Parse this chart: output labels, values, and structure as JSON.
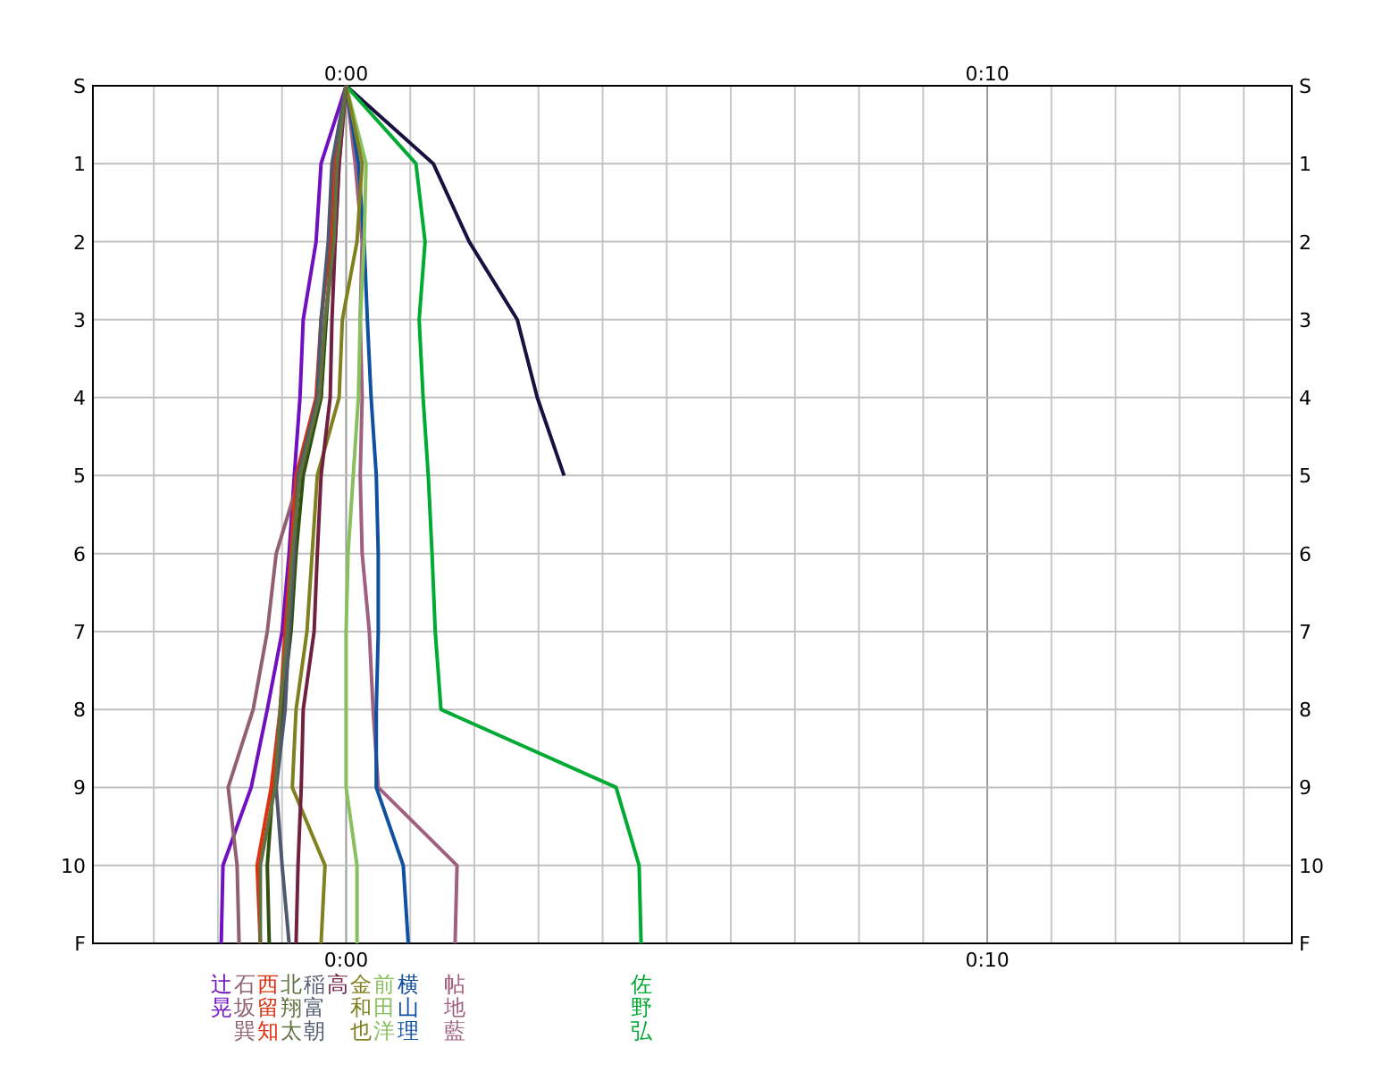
{
  "chart_data": {
    "type": "line",
    "orientation": "horizontal",
    "categories": [
      "S",
      "1",
      "2",
      "3",
      "4",
      "5",
      "6",
      "7",
      "8",
      "9",
      "10",
      "F"
    ],
    "xlim": [
      -3.95,
      14.75
    ],
    "xticks": [
      {
        "value": -3,
        "label": null
      },
      {
        "value": -2,
        "label": null
      },
      {
        "value": -1,
        "label": null
      },
      {
        "value": 0,
        "label": "0:00"
      },
      {
        "value": 1,
        "label": null
      },
      {
        "value": 2,
        "label": null
      },
      {
        "value": 3,
        "label": null
      },
      {
        "value": 4,
        "label": null
      },
      {
        "value": 5,
        "label": null
      },
      {
        "value": 6,
        "label": null
      },
      {
        "value": 7,
        "label": null
      },
      {
        "value": 8,
        "label": null
      },
      {
        "value": 9,
        "label": null
      },
      {
        "value": 10,
        "label": "0:10"
      },
      {
        "value": 11,
        "label": null
      },
      {
        "value": 12,
        "label": null
      },
      {
        "value": 13,
        "label": null
      },
      {
        "value": 14,
        "label": null
      }
    ],
    "x2lim": [
      -3.95,
      14.75
    ],
    "x2ticks": [
      {
        "value": 0,
        "label": "0:00"
      },
      {
        "value": 10,
        "label": "0:10"
      }
    ],
    "grid": true,
    "legend": false,
    "line_style": "solid",
    "series": [
      {
        "color": "#1a1040",
        "values": [
          0,
          1.36,
          1.92,
          2.67,
          2.98,
          3.4,
          null,
          null,
          null,
          null,
          null,
          null
        ]
      },
      {
        "name": "佐野弘",
        "color": "#00aa33",
        "values": [
          0,
          1.09,
          1.23,
          1.14,
          1.2,
          1.28,
          1.34,
          1.39,
          1.48,
          4.21,
          4.57,
          4.6
        ]
      },
      {
        "name": "帖地藍",
        "color": "#a06080",
        "values": [
          0,
          0.14,
          0.25,
          0.22,
          0.25,
          0.22,
          0.25,
          0.36,
          0.42,
          0.5,
          1.73,
          1.7
        ]
      },
      {
        "name": "横山理",
        "color": "#1050a0",
        "values": [
          0,
          0.19,
          0.28,
          0.33,
          0.39,
          0.47,
          0.5,
          0.5,
          0.47,
          0.47,
          0.89,
          0.97
        ]
      },
      {
        "name": "前田洋",
        "color": "#88c060",
        "values": [
          0,
          0.31,
          0.28,
          0.22,
          0.19,
          0.11,
          0.03,
          0,
          0,
          0,
          0.17,
          0.17
        ]
      },
      {
        "name": "金和也",
        "color": "#808020",
        "values": [
          0,
          0.25,
          0.17,
          -0.06,
          -0.11,
          -0.45,
          -0.53,
          -0.61,
          -0.78,
          -0.84,
          -0.33,
          -0.39
        ]
      },
      {
        "name": "辻晃",
        "color": "#7010c0",
        "values": [
          0,
          -0.39,
          -0.47,
          -0.67,
          -0.72,
          -0.81,
          -0.89,
          -1.0,
          -1.23,
          -1.48,
          -1.92,
          -1.95
        ]
      },
      {
        "name": "石坂巽",
        "color": "#906070",
        "values": [
          0,
          -0.11,
          -0.17,
          -0.33,
          -0.39,
          -0.72,
          -1.09,
          -1.23,
          -1.45,
          -1.84,
          -1.7,
          -1.67
        ]
      },
      {
        "name": "高",
        "color": "#702040",
        "values": [
          0,
          -0.11,
          -0.17,
          -0.22,
          -0.25,
          -0.39,
          -0.45,
          -0.5,
          -0.67,
          -0.7,
          -0.75,
          -0.78
        ]
      },
      {
        "color": "#305010",
        "values": [
          0,
          -0.17,
          -0.22,
          -0.31,
          -0.39,
          -0.67,
          -0.78,
          -0.86,
          -1.0,
          -1.14,
          -1.23,
          -1.2
        ]
      },
      {
        "name": "西留知",
        "color": "#e03010",
        "values": [
          0,
          -0.19,
          -0.25,
          -0.39,
          -0.47,
          -0.78,
          -0.86,
          -0.95,
          -1.03,
          -1.17,
          -1.39,
          -1.34
        ]
      },
      {
        "name": "稲富朝",
        "color": "#505870",
        "values": [
          0,
          -0.22,
          -0.28,
          -0.39,
          -0.45,
          -0.75,
          -0.81,
          -0.89,
          -0.95,
          -1.09,
          -1.0,
          -0.89
        ]
      },
      {
        "name": "北翔太",
        "color": "#607040",
        "values": [
          0,
          -0.14,
          -0.19,
          -0.33,
          -0.42,
          -0.72,
          -0.84,
          -0.92,
          -1.03,
          -1.11,
          -1.34,
          -1.34
        ]
      }
    ]
  }
}
